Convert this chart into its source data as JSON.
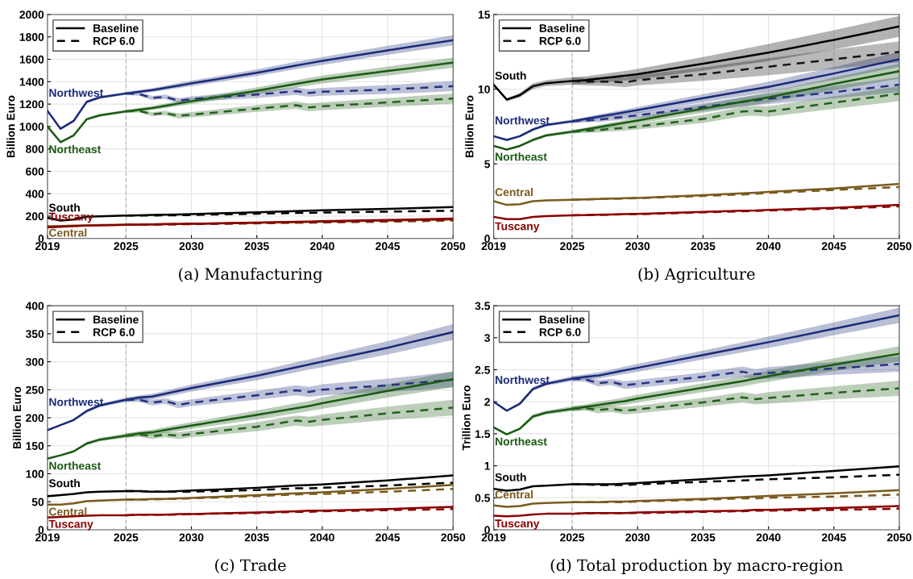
{
  "chart_data": [
    {
      "type": "line",
      "title": "(a) Manufacturing",
      "ylabel": "Billion Euro",
      "x": [
        2019,
        2020,
        2021,
        2022,
        2023,
        2025,
        2026,
        2027,
        2028,
        2029,
        2030,
        2035,
        2038,
        2039,
        2040,
        2045,
        2050
      ],
      "xlim": [
        2019,
        2050
      ],
      "xticks": [
        2019,
        2025,
        2030,
        2035,
        2040,
        2045,
        2050
      ],
      "ylim": [
        0,
        2000
      ],
      "yticks": [
        0,
        200,
        400,
        600,
        800,
        1000,
        1200,
        1400,
        1600,
        1800,
        2000
      ],
      "grid": true,
      "legend": "top left",
      "ref_lines": [
        {
          "axis": "x",
          "value": 2025,
          "label": null,
          "color": "#b0b0b0",
          "line_style": "dashed"
        }
      ],
      "annotations": [
        "Northwest",
        "Northeast",
        "South",
        "Central",
        "Tuscany"
      ],
      "series": [
        {
          "color": "#1b2a78",
          "line_style": "solid",
          "values": [
            1140,
            980,
            1050,
            1220,
            1260,
            1295,
            1310,
            1325,
            1345,
            1365,
            1385,
            1480,
            1545,
            1565,
            1585,
            1680,
            1770
          ],
          "lower": [
            1132,
            972,
            1040,
            1208,
            1248,
            1281,
            1295,
            1307,
            1325,
            1343,
            1361,
            1450,
            1512,
            1531,
            1550,
            1640,
            1725
          ],
          "upper": [
            1148,
            988,
            1060,
            1232,
            1272,
            1309,
            1325,
            1343,
            1365,
            1387,
            1409,
            1510,
            1578,
            1599,
            1620,
            1720,
            1815
          ]
        },
        {
          "color": "#24337f",
          "line_style": "dashed",
          "x": [
            2025,
            2026,
            2027,
            2028,
            2029,
            2030,
            2035,
            2038,
            2039,
            2040,
            2045,
            2050
          ],
          "values": [
            1295,
            1290,
            1255,
            1265,
            1230,
            1245,
            1285,
            1315,
            1300,
            1310,
            1330,
            1360
          ],
          "lower": [
            1281,
            1275,
            1237,
            1245,
            1208,
            1221,
            1255,
            1282,
            1266,
            1275,
            1290,
            1315
          ],
          "upper": [
            1309,
            1305,
            1273,
            1285,
            1252,
            1269,
            1315,
            1348,
            1334,
            1345,
            1370,
            1405
          ]
        },
        {
          "color": "#1a5a14",
          "line_style": "solid",
          "values": [
            1000,
            860,
            920,
            1065,
            1100,
            1135,
            1150,
            1165,
            1185,
            1205,
            1225,
            1320,
            1380,
            1400,
            1420,
            1495,
            1570
          ],
          "lower": [
            992,
            852,
            910,
            1053,
            1088,
            1121,
            1135,
            1147,
            1165,
            1183,
            1201,
            1290,
            1347,
            1366,
            1385,
            1455,
            1525
          ],
          "upper": [
            1008,
            868,
            930,
            1077,
            1112,
            1149,
            1165,
            1183,
            1205,
            1227,
            1249,
            1350,
            1413,
            1434,
            1455,
            1535,
            1615
          ]
        },
        {
          "color": "#23611c",
          "line_style": "dashed",
          "x": [
            2025,
            2026,
            2027,
            2028,
            2029,
            2030,
            2035,
            2038,
            2039,
            2040,
            2045,
            2050
          ],
          "values": [
            1135,
            1140,
            1110,
            1120,
            1095,
            1105,
            1160,
            1190,
            1170,
            1180,
            1215,
            1250
          ],
          "lower": [
            1121,
            1125,
            1092,
            1100,
            1073,
            1081,
            1130,
            1157,
            1136,
            1145,
            1175,
            1205
          ],
          "upper": [
            1149,
            1155,
            1128,
            1140,
            1117,
            1129,
            1190,
            1223,
            1204,
            1215,
            1255,
            1295
          ]
        },
        {
          "name": "Baseline",
          "color": "#000000",
          "line_style": "solid",
          "values": [
            185,
            160,
            170,
            195,
            198,
            205,
            207,
            210,
            212,
            215,
            218,
            235,
            245,
            248,
            252,
            265,
            280
          ]
        },
        {
          "name": "RCP 6.0",
          "color": "#000000",
          "line_style": "dashed",
          "x": [
            2025,
            2026,
            2027,
            2028,
            2029,
            2030,
            2035,
            2038,
            2039,
            2040,
            2045,
            2050
          ],
          "values": [
            205,
            205,
            205,
            207,
            208,
            210,
            222,
            228,
            228,
            232,
            240,
            248
          ]
        },
        {
          "color": "#7a5a1e",
          "line_style": "solid",
          "values": [
            110,
            112,
            115,
            118,
            120,
            123,
            125,
            127,
            129,
            130,
            132,
            140,
            146,
            148,
            150,
            160,
            170
          ]
        },
        {
          "color": "#7a5a1e",
          "line_style": "dashed",
          "x": [
            2025,
            2026,
            2027,
            2028,
            2029,
            2030,
            2035,
            2038,
            2039,
            2040,
            2045,
            2050
          ],
          "values": [
            123,
            124,
            125,
            126,
            127,
            128,
            135,
            140,
            140,
            143,
            150,
            160
          ]
        },
        {
          "color": "#8b0000",
          "line_style": "solid",
          "values": [
            100,
            105,
            110,
            115,
            118,
            122,
            124,
            126,
            128,
            130,
            132,
            142,
            150,
            152,
            155,
            165,
            178
          ]
        },
        {
          "color": "#8b0000",
          "line_style": "dashed",
          "x": [
            2025,
            2026,
            2027,
            2028,
            2029,
            2030,
            2035,
            2038,
            2039,
            2040,
            2045,
            2050
          ],
          "values": [
            122,
            123,
            125,
            126,
            128,
            130,
            138,
            145,
            146,
            148,
            158,
            168
          ]
        }
      ]
    },
    {
      "type": "line",
      "title": "(b) Agriculture",
      "ylabel": "Billion Euro",
      "x": [
        2019,
        2020,
        2021,
        2022,
        2023,
        2025,
        2026,
        2027,
        2028,
        2029,
        2030,
        2035,
        2038,
        2039,
        2040,
        2045,
        2050
      ],
      "xlim": [
        2019,
        2050
      ],
      "xticks": [
        2019,
        2025,
        2030,
        2035,
        2040,
        2045,
        2050
      ],
      "ylim": [
        0,
        15
      ],
      "yticks": [
        0,
        5,
        10,
        15
      ],
      "grid": true,
      "legend": "top left",
      "ref_lines": [
        {
          "axis": "x",
          "value": 2025,
          "label": null,
          "color": "#b0b0b0",
          "line_style": "dashed"
        }
      ],
      "annotations": [
        "Northwest",
        "Northeast",
        "South",
        "Central",
        "Tuscany"
      ],
      "series": [
        {
          "color": "#1b2a78",
          "line_style": "solid",
          "values": [
            6.85,
            6.6,
            6.85,
            7.3,
            7.6,
            7.85,
            8.0,
            8.15,
            8.3,
            8.45,
            8.6,
            9.4,
            9.85,
            10.0,
            10.15,
            11.05,
            12.0
          ],
          "lower": [
            6.8,
            6.55,
            6.78,
            7.2,
            7.5,
            7.73,
            7.87,
            8.0,
            8.13,
            8.27,
            8.4,
            9.13,
            9.53,
            9.67,
            9.8,
            10.63,
            11.5
          ],
          "upper": [
            6.9,
            6.65,
            6.92,
            7.4,
            7.7,
            7.97,
            8.13,
            8.3,
            8.47,
            8.63,
            8.8,
            9.67,
            10.17,
            10.33,
            10.5,
            11.47,
            12.5
          ]
        },
        {
          "color": "#24337f",
          "line_style": "dashed",
          "x": [
            2025,
            2026,
            2027,
            2028,
            2029,
            2030,
            2035,
            2038,
            2039,
            2040,
            2045,
            2050
          ],
          "values": [
            7.85,
            7.9,
            7.95,
            8.05,
            8.15,
            8.25,
            8.8,
            9.15,
            9.25,
            9.35,
            9.8,
            10.3
          ],
          "lower": [
            7.73,
            7.77,
            7.8,
            7.88,
            7.97,
            8.05,
            8.53,
            8.83,
            8.92,
            9.0,
            9.38,
            9.8
          ],
          "upper": [
            7.97,
            8.03,
            8.1,
            8.22,
            8.33,
            8.45,
            9.07,
            9.47,
            9.58,
            9.7,
            10.22,
            10.8
          ]
        },
        {
          "color": "#1a5a14",
          "line_style": "solid",
          "values": [
            6.2,
            5.95,
            6.2,
            6.6,
            6.9,
            7.15,
            7.3,
            7.45,
            7.6,
            7.75,
            7.9,
            8.7,
            9.15,
            9.3,
            9.45,
            10.35,
            11.2
          ],
          "lower": [
            6.15,
            5.9,
            6.13,
            6.5,
            6.8,
            7.03,
            7.17,
            7.3,
            7.43,
            7.57,
            7.7,
            8.43,
            8.83,
            8.97,
            9.1,
            9.93,
            10.7
          ],
          "upper": [
            6.25,
            6.0,
            6.27,
            6.7,
            7.0,
            7.27,
            7.43,
            7.6,
            7.77,
            7.93,
            8.1,
            8.97,
            9.47,
            9.63,
            9.8,
            10.77,
            11.7
          ]
        },
        {
          "color": "#23611c",
          "line_style": "dashed",
          "x": [
            2025,
            2026,
            2027,
            2028,
            2029,
            2030,
            2035,
            2038,
            2039,
            2040,
            2045,
            2050
          ],
          "values": [
            7.15,
            7.2,
            7.25,
            7.35,
            7.4,
            7.5,
            8.0,
            8.5,
            8.55,
            8.5,
            9.1,
            9.7
          ],
          "lower": [
            7.03,
            7.07,
            7.1,
            7.18,
            7.22,
            7.3,
            7.73,
            8.18,
            8.22,
            8.15,
            8.68,
            9.2
          ],
          "upper": [
            7.27,
            7.33,
            7.4,
            7.52,
            7.58,
            7.7,
            8.27,
            8.82,
            8.88,
            8.85,
            9.52,
            10.2
          ]
        },
        {
          "name": "Baseline",
          "color": "#000000",
          "line_style": "solid",
          "values": [
            10.3,
            9.3,
            9.6,
            10.2,
            10.4,
            10.55,
            10.6,
            10.7,
            10.8,
            10.9,
            11.0,
            11.7,
            12.15,
            12.3,
            12.45,
            13.3,
            14.2
          ],
          "lower": [
            10.2,
            9.2,
            9.45,
            10.0,
            10.2,
            10.3,
            10.35,
            10.43,
            10.5,
            10.58,
            10.65,
            11.25,
            11.63,
            11.75,
            11.88,
            12.65,
            13.5
          ],
          "upper": [
            10.4,
            9.4,
            9.75,
            10.4,
            10.6,
            10.8,
            10.85,
            10.97,
            11.1,
            11.22,
            11.35,
            12.15,
            12.67,
            12.85,
            13.02,
            13.95,
            14.9
          ]
        },
        {
          "name": "RCP 6.0",
          "color": "#151515",
          "line_style": "dashed",
          "x": [
            2025,
            2026,
            2027,
            2028,
            2029,
            2030,
            2035,
            2038,
            2039,
            2040,
            2045,
            2050
          ],
          "values": [
            10.55,
            10.5,
            10.5,
            10.5,
            10.45,
            10.6,
            11.0,
            11.3,
            11.4,
            11.5,
            12.0,
            12.5
          ],
          "lower": [
            10.3,
            10.25,
            10.23,
            10.2,
            10.13,
            10.25,
            10.55,
            10.78,
            10.85,
            10.93,
            11.35,
            11.8
          ],
          "upper": [
            10.8,
            10.75,
            10.77,
            10.8,
            10.77,
            10.95,
            11.45,
            11.82,
            11.95,
            12.07,
            12.65,
            13.2
          ]
        },
        {
          "color": "#7a5a1e",
          "line_style": "solid",
          "values": [
            2.5,
            2.25,
            2.3,
            2.5,
            2.55,
            2.6,
            2.62,
            2.65,
            2.67,
            2.7,
            2.72,
            2.9,
            3.02,
            3.07,
            3.12,
            3.35,
            3.65
          ]
        },
        {
          "color": "#7a5a1e",
          "line_style": "dashed",
          "x": [
            2025,
            2026,
            2027,
            2028,
            2029,
            2030,
            2035,
            2038,
            2039,
            2040,
            2045,
            2050
          ],
          "values": [
            2.6,
            2.62,
            2.64,
            2.66,
            2.68,
            2.7,
            2.85,
            2.95,
            3.0,
            3.05,
            3.25,
            3.45
          ]
        },
        {
          "color": "#8b0000",
          "line_style": "solid",
          "values": [
            1.45,
            1.3,
            1.3,
            1.45,
            1.5,
            1.55,
            1.57,
            1.59,
            1.61,
            1.63,
            1.65,
            1.78,
            1.86,
            1.88,
            1.92,
            2.05,
            2.25
          ]
        },
        {
          "color": "#8b0000",
          "line_style": "dashed",
          "x": [
            2025,
            2026,
            2027,
            2028,
            2029,
            2030,
            2035,
            2038,
            2039,
            2040,
            2045,
            2050
          ],
          "values": [
            1.55,
            1.57,
            1.58,
            1.6,
            1.62,
            1.63,
            1.75,
            1.82,
            1.85,
            1.88,
            2.0,
            2.15
          ]
        }
      ]
    },
    {
      "type": "line",
      "title": "(c) Trade",
      "ylabel": "Billion Euro",
      "x": [
        2019,
        2020,
        2021,
        2022,
        2023,
        2025,
        2026,
        2027,
        2028,
        2029,
        2030,
        2035,
        2038,
        2039,
        2040,
        2045,
        2050
      ],
      "xlim": [
        2019,
        2050
      ],
      "xticks": [
        2019,
        2025,
        2030,
        2035,
        2040,
        2045,
        2050
      ],
      "ylim": [
        0,
        400
      ],
      "yticks": [
        0,
        50,
        100,
        150,
        200,
        250,
        300,
        350,
        400
      ],
      "grid": true,
      "legend": "top left",
      "ref_lines": [
        {
          "axis": "x",
          "value": 2025,
          "label": null,
          "color": "#b0b0b0",
          "line_style": "dashed"
        }
      ],
      "annotations": [
        "Northwest",
        "Northeast",
        "South",
        "Central",
        "Tuscany"
      ],
      "series": [
        {
          "color": "#1b2a78",
          "line_style": "solid",
          "values": [
            178,
            187,
            196,
            212,
            222,
            232,
            236,
            238,
            243,
            248,
            253,
            275,
            290,
            295,
            300,
            325,
            353
          ],
          "lower": [
            177,
            186,
            194,
            209,
            219,
            228,
            232,
            233,
            238,
            242,
            247,
            267,
            281,
            286,
            290,
            313,
            339
          ],
          "upper": [
            179,
            188,
            198,
            215,
            225,
            236,
            240,
            243,
            248,
            254,
            259,
            283,
            299,
            304,
            310,
            337,
            367
          ]
        },
        {
          "color": "#24337f",
          "line_style": "dashed",
          "x": [
            2025,
            2026,
            2027,
            2028,
            2029,
            2030,
            2035,
            2038,
            2039,
            2040,
            2045,
            2050
          ],
          "values": [
            232,
            232,
            227,
            230,
            223,
            227,
            240,
            249,
            246,
            250,
            258,
            268
          ],
          "lower": [
            228,
            228,
            222,
            225,
            217,
            221,
            232,
            240,
            237,
            240,
            246,
            254
          ],
          "upper": [
            236,
            236,
            232,
            235,
            229,
            233,
            248,
            258,
            255,
            260,
            270,
            282
          ]
        },
        {
          "color": "#1a5a14",
          "line_style": "solid",
          "values": [
            127,
            133,
            140,
            154,
            161,
            168,
            172,
            174,
            178,
            182,
            186,
            205,
            217,
            221,
            226,
            248,
            269
          ],
          "lower": [
            126,
            132,
            138,
            151,
            158,
            164,
            168,
            169,
            173,
            176,
            180,
            197,
            208,
            212,
            216,
            236,
            255
          ],
          "upper": [
            128,
            134,
            142,
            157,
            164,
            172,
            176,
            179,
            183,
            188,
            192,
            213,
            226,
            230,
            236,
            260,
            283
          ]
        },
        {
          "color": "#23611c",
          "line_style": "dashed",
          "x": [
            2025,
            2026,
            2027,
            2028,
            2029,
            2030,
            2035,
            2038,
            2039,
            2040,
            2045,
            2050
          ],
          "values": [
            168,
            170,
            167,
            170,
            168,
            171,
            184,
            195,
            193,
            196,
            208,
            218
          ],
          "lower": [
            164,
            166,
            162,
            165,
            162,
            165,
            176,
            186,
            184,
            186,
            196,
            204
          ],
          "upper": [
            172,
            174,
            172,
            175,
            174,
            177,
            192,
            204,
            202,
            206,
            220,
            232
          ]
        },
        {
          "name": "Baseline",
          "color": "#000000",
          "line_style": "solid",
          "values": [
            60,
            62,
            64,
            67,
            68,
            69,
            69,
            68,
            68,
            69,
            70,
            75,
            79,
            80,
            81,
            88,
            97
          ]
        },
        {
          "name": "RCP 6.0",
          "color": "#000000",
          "line_style": "dashed",
          "x": [
            2025,
            2026,
            2027,
            2028,
            2029,
            2030,
            2035,
            2038,
            2039,
            2040,
            2045,
            2050
          ],
          "values": [
            69,
            69,
            68,
            68,
            68,
            68,
            71,
            74,
            74,
            75,
            79,
            84
          ]
        },
        {
          "color": "#7a5a1e",
          "line_style": "solid",
          "values": [
            45,
            45,
            47,
            51,
            52,
            54,
            54,
            55,
            55,
            56,
            57,
            62,
            65,
            66,
            67,
            73,
            80
          ]
        },
        {
          "color": "#7a5a1e",
          "line_style": "dashed",
          "x": [
            2025,
            2026,
            2027,
            2028,
            2029,
            2030,
            2035,
            2038,
            2039,
            2040,
            2045,
            2050
          ],
          "values": [
            54,
            54,
            54,
            55,
            55,
            56,
            60,
            63,
            64,
            64,
            68,
            73
          ]
        },
        {
          "color": "#8b0000",
          "line_style": "solid",
          "values": [
            22,
            23,
            24,
            25,
            26,
            26,
            27,
            27,
            27,
            28,
            28,
            31,
            33,
            34,
            34,
            37,
            41
          ]
        },
        {
          "color": "#8b0000",
          "line_style": "dashed",
          "x": [
            2025,
            2026,
            2027,
            2028,
            2029,
            2030,
            2035,
            2038,
            2039,
            2040,
            2045,
            2050
          ],
          "values": [
            26,
            27,
            27,
            27,
            27,
            28,
            30,
            32,
            32,
            33,
            35,
            37
          ]
        }
      ]
    },
    {
      "type": "line",
      "title": "(d) Total production by macro-region",
      "ylabel": "Trillion Euro",
      "x": [
        2019,
        2020,
        2021,
        2022,
        2023,
        2025,
        2026,
        2027,
        2028,
        2029,
        2030,
        2035,
        2038,
        2039,
        2040,
        2045,
        2050
      ],
      "xlim": [
        2019,
        2050
      ],
      "xticks": [
        2019,
        2025,
        2030,
        2035,
        2040,
        2045,
        2050
      ],
      "ylim": [
        0,
        3.5
      ],
      "yticks": [
        0,
        0.5,
        1,
        1.5,
        2,
        2.5,
        3,
        3.5
      ],
      "grid": true,
      "legend": "top left",
      "ref_lines": [
        {
          "axis": "x",
          "value": 2025,
          "label": null,
          "color": "#b0b0b0",
          "line_style": "dashed"
        }
      ],
      "annotations": [
        "Northwest",
        "Northeast",
        "South",
        "Central",
        "Tuscany"
      ],
      "series": [
        {
          "color": "#1b2a78",
          "line_style": "solid",
          "values": [
            2.0,
            1.86,
            1.97,
            2.2,
            2.28,
            2.36,
            2.39,
            2.41,
            2.45,
            2.49,
            2.53,
            2.73,
            2.85,
            2.89,
            2.93,
            3.14,
            3.35
          ],
          "lower": [
            1.99,
            1.85,
            1.95,
            2.17,
            2.25,
            2.32,
            2.35,
            2.36,
            2.4,
            2.43,
            2.47,
            2.66,
            2.77,
            2.81,
            2.84,
            3.04,
            3.23
          ],
          "upper": [
            2.01,
            1.87,
            1.99,
            2.23,
            2.31,
            2.4,
            2.43,
            2.46,
            2.5,
            2.55,
            2.59,
            2.8,
            2.93,
            2.97,
            3.02,
            3.24,
            3.47
          ]
        },
        {
          "color": "#24337f",
          "line_style": "dashed",
          "x": [
            2025,
            2026,
            2027,
            2028,
            2029,
            2030,
            2035,
            2038,
            2039,
            2040,
            2045,
            2050
          ],
          "values": [
            2.36,
            2.35,
            2.29,
            2.31,
            2.26,
            2.28,
            2.39,
            2.47,
            2.43,
            2.45,
            2.52,
            2.59
          ],
          "lower": [
            2.32,
            2.31,
            2.24,
            2.26,
            2.2,
            2.22,
            2.32,
            2.39,
            2.35,
            2.36,
            2.42,
            2.47
          ],
          "upper": [
            2.4,
            2.39,
            2.34,
            2.36,
            2.32,
            2.34,
            2.46,
            2.55,
            2.51,
            2.54,
            2.62,
            2.71
          ]
        },
        {
          "color": "#1a5a14",
          "line_style": "solid",
          "values": [
            1.6,
            1.49,
            1.58,
            1.77,
            1.83,
            1.89,
            1.92,
            1.95,
            1.98,
            2.01,
            2.05,
            2.22,
            2.32,
            2.36,
            2.4,
            2.58,
            2.75
          ],
          "lower": [
            1.59,
            1.48,
            1.56,
            1.74,
            1.8,
            1.85,
            1.88,
            1.9,
            1.93,
            1.95,
            1.99,
            2.15,
            2.24,
            2.28,
            2.31,
            2.48,
            2.63
          ],
          "upper": [
            1.61,
            1.5,
            1.6,
            1.8,
            1.86,
            1.93,
            1.96,
            2.0,
            2.03,
            2.07,
            2.11,
            2.29,
            2.4,
            2.44,
            2.49,
            2.68,
            2.87
          ]
        },
        {
          "color": "#23611c",
          "line_style": "dashed",
          "x": [
            2025,
            2026,
            2027,
            2028,
            2029,
            2030,
            2035,
            2038,
            2039,
            2040,
            2045,
            2050
          ],
          "values": [
            1.89,
            1.9,
            1.87,
            1.89,
            1.86,
            1.88,
            1.99,
            2.07,
            2.04,
            2.06,
            2.14,
            2.21
          ],
          "lower": [
            1.85,
            1.86,
            1.82,
            1.84,
            1.8,
            1.82,
            1.92,
            1.99,
            1.96,
            1.97,
            2.04,
            2.09
          ],
          "upper": [
            1.93,
            1.94,
            1.92,
            1.94,
            1.92,
            1.94,
            2.06,
            2.15,
            2.12,
            2.15,
            2.24,
            2.33
          ]
        },
        {
          "name": "Baseline",
          "color": "#000000",
          "line_style": "solid",
          "values": [
            0.64,
            0.61,
            0.63,
            0.68,
            0.69,
            0.71,
            0.71,
            0.71,
            0.71,
            0.72,
            0.73,
            0.79,
            0.83,
            0.84,
            0.85,
            0.92,
            0.99
          ]
        },
        {
          "name": "RCP 6.0",
          "color": "#000000",
          "line_style": "dashed",
          "x": [
            2025,
            2026,
            2027,
            2028,
            2029,
            2030,
            2035,
            2038,
            2039,
            2040,
            2045,
            2050
          ],
          "values": [
            0.71,
            0.71,
            0.7,
            0.7,
            0.7,
            0.71,
            0.75,
            0.77,
            0.78,
            0.79,
            0.82,
            0.86
          ]
        },
        {
          "color": "#7a5a1e",
          "line_style": "solid",
          "values": [
            0.38,
            0.36,
            0.37,
            0.41,
            0.42,
            0.43,
            0.43,
            0.43,
            0.44,
            0.44,
            0.45,
            0.48,
            0.51,
            0.52,
            0.53,
            0.57,
            0.62
          ]
        },
        {
          "color": "#7a5a1e",
          "line_style": "dashed",
          "x": [
            2025,
            2026,
            2027,
            2028,
            2029,
            2030,
            2035,
            2038,
            2039,
            2040,
            2045,
            2050
          ],
          "values": [
            0.43,
            0.43,
            0.43,
            0.43,
            0.43,
            0.44,
            0.47,
            0.49,
            0.49,
            0.5,
            0.52,
            0.55
          ]
        },
        {
          "color": "#8b0000",
          "line_style": "solid",
          "values": [
            0.22,
            0.21,
            0.22,
            0.24,
            0.25,
            0.25,
            0.26,
            0.26,
            0.26,
            0.26,
            0.27,
            0.29,
            0.3,
            0.31,
            0.31,
            0.34,
            0.37
          ]
        },
        {
          "color": "#8b0000",
          "line_style": "dashed",
          "x": [
            2025,
            2026,
            2027,
            2028,
            2029,
            2030,
            2035,
            2038,
            2039,
            2040,
            2045,
            2050
          ],
          "values": [
            0.25,
            0.26,
            0.26,
            0.26,
            0.26,
            0.26,
            0.28,
            0.29,
            0.3,
            0.3,
            0.31,
            0.33
          ]
        }
      ]
    }
  ]
}
